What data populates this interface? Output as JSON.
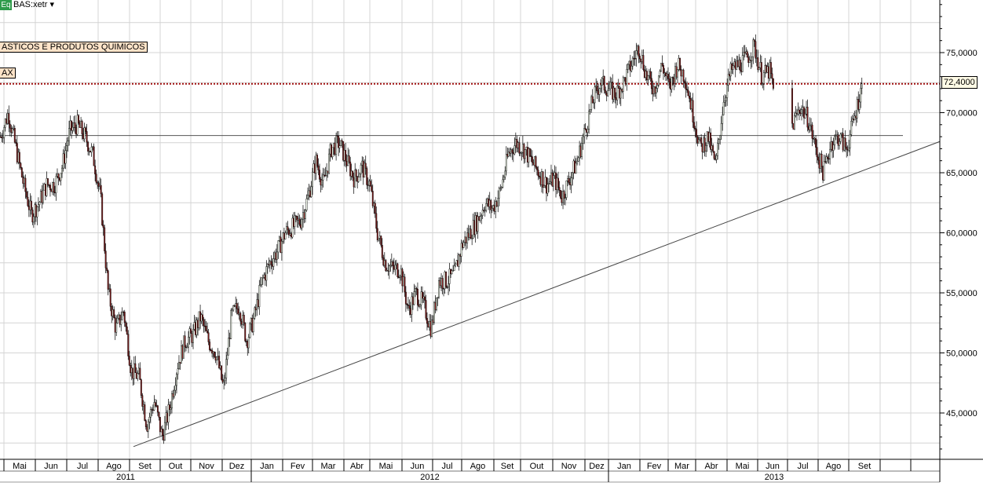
{
  "header": {
    "badge": "Eq",
    "symbol": "BAS:xetr",
    "dropdown_icon": "caret-down-icon"
  },
  "annotations": {
    "sector": "ASTICOS E PRODUTOS QUIMICOS",
    "index": "AX"
  },
  "last_price_label": "72,4000",
  "colors": {
    "up": "#eef6e8",
    "down": "#7a1a1a",
    "grid": "#d4d4d4",
    "last_line": "#a01010",
    "badge": "#2e9b4a"
  },
  "chart_data": {
    "type": "candlestick",
    "title": "BAS:xetr",
    "period": "2011-04 to 2013-09",
    "ylim": [
      41.1,
      79.4
    ],
    "y_ticks": [
      "75,0000",
      "70,0000",
      "65,0000",
      "60,0000",
      "55,0000",
      "50,0000",
      "45,0000"
    ],
    "y_tick_values": [
      75,
      70,
      65,
      60,
      55,
      50,
      45
    ],
    "months": [
      "Mai",
      "Jun",
      "Jul",
      "Ago",
      "Set",
      "Out",
      "Nov",
      "Dez",
      "Jan",
      "Fev",
      "Mar",
      "Abr",
      "Mai",
      "Jun",
      "Jul",
      "Ago",
      "Set",
      "Out",
      "Nov",
      "Dez",
      "Jan",
      "Fev",
      "Mar",
      "Abr",
      "Mai",
      "Jun",
      "Jul",
      "Ago",
      "Set",
      "",
      ""
    ],
    "years": [
      "2011",
      "2012",
      "2013"
    ],
    "horizontal_line": 68.1,
    "last_price": 72.4,
    "trendline": {
      "start": {
        "date": "2011-09",
        "price": 42.2
      },
      "end_price_at_axis": 67.6
    },
    "approx_closes": [
      68,
      70,
      67,
      64,
      61.5,
      62.5,
      64,
      64,
      65.5,
      68.5,
      69,
      68,
      66.5,
      63,
      55,
      52,
      53.5,
      48.5,
      48,
      44,
      46,
      43,
      45.5,
      49,
      51,
      51.5,
      53,
      51,
      50,
      47,
      53,
      54,
      51,
      53,
      56,
      57.5,
      58.5,
      60,
      60.5,
      61,
      63,
      66,
      64,
      67,
      67.5,
      66,
      64.5,
      65.5,
      64,
      60,
      57.5,
      57,
      57,
      53.5,
      55,
      54,
      52,
      56,
      56,
      56.5,
      59,
      60,
      61,
      62.5,
      62,
      63.5,
      66.5,
      67.5,
      67,
      66,
      65,
      64,
      64.5,
      63,
      64.5,
      66,
      68.5,
      71,
      72.5,
      72,
      71.5,
      72.5,
      74,
      75.5,
      73,
      72,
      74,
      72,
      74,
      73,
      70,
      67,
      68,
      65.5,
      71,
      73.5,
      74,
      74.5,
      75.5,
      73,
      73.5,
      70,
      68,
      69,
      70.5,
      69.5,
      67,
      65,
      67.5,
      68,
      67,
      69.5,
      72.4
    ]
  }
}
